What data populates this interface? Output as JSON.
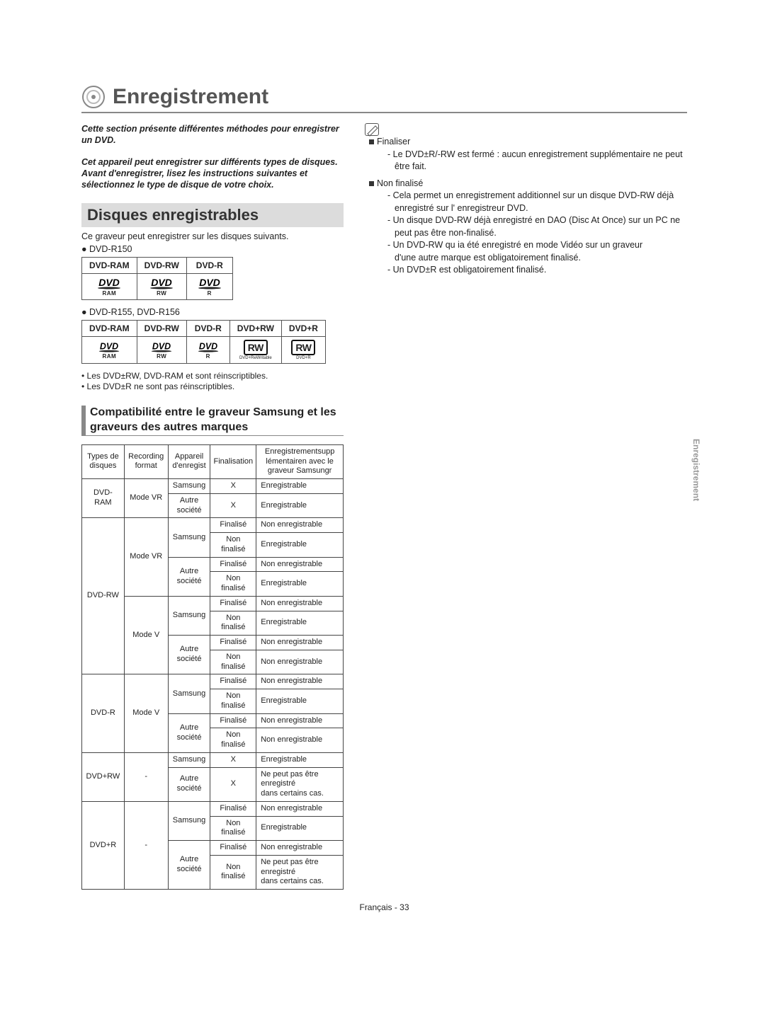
{
  "title": "Enregistrement",
  "side_tab": "Enregistrement",
  "intro": [
    "Cette section présente différentes méthodes pour enregistrer un DVD.",
    "Cet appareil peut enregistrer sur différents types de disques. Avant d'enregistrer, lisez les instructions suivantes et sélectionnez le type de disque de votre choix."
  ],
  "section1": {
    "heading": "Disques enregistrables",
    "desc": "Ce graveur peut enregistrer sur les disques suivants.",
    "model1": "DVD-R150",
    "model2": "DVD-R155, DVD-R156",
    "table1_headers": [
      "DVD-RAM",
      "DVD-RW",
      "DVD-R"
    ],
    "table1_sub": [
      "RAM",
      "RW",
      "R"
    ],
    "table2_headers": [
      "DVD-RAM",
      "DVD-RW",
      "DVD-R",
      "DVD+RW",
      "DVD+R"
    ],
    "table2_sub": [
      "RAM",
      "RW",
      "R",
      "DVD+ReWritable",
      "DVD+R"
    ],
    "rw_label": "RW",
    "notes": [
      "Les DVD±RW, DVD-RAM et sont réinscriptibles.",
      "Les DVD±R ne sont pas réinscriptibles."
    ]
  },
  "section2": {
    "heading": "Compatibilité entre le graveur Samsung et les graveurs des autres marques",
    "cols": [
      "Types de disques",
      "Recording format",
      "Appareil d'enregist",
      "Finalisation",
      "Enregistrementsupp lémentairen avec le graveur Samsungr"
    ],
    "rows": [
      [
        "DVD-RAM",
        "Mode VR",
        "Samsung",
        "X",
        "Enregistrable",
        {
          "r0": 2,
          "r1": 2
        }
      ],
      [
        "",
        "",
        "Autre société",
        "X",
        "Enregistrable",
        {}
      ],
      [
        "DVD-RW",
        "Mode VR",
        "Samsung",
        "Finalisé",
        "Non enregistrable",
        {
          "r0": 8,
          "r1": 4,
          "r2": 2
        }
      ],
      [
        "",
        "",
        "",
        "Non finalisé",
        "Enregistrable",
        {}
      ],
      [
        "",
        "",
        "Autre société",
        "Finalisé",
        "Non enregistrable",
        {
          "r2": 2
        }
      ],
      [
        "",
        "",
        "",
        "Non finalisé",
        "Enregistrable",
        {}
      ],
      [
        "",
        "Mode V",
        "Samsung",
        "Finalisé",
        "Non enregistrable",
        {
          "r1": 4,
          "r2": 2
        }
      ],
      [
        "",
        "",
        "",
        "Non finalisé",
        "Enregistrable",
        {}
      ],
      [
        "",
        "",
        "Autre société",
        "Finalisé",
        "Non enregistrable",
        {
          "r2": 2
        }
      ],
      [
        "",
        "",
        "",
        "Non finalisé",
        "Non enregistrable",
        {}
      ],
      [
        "DVD-R",
        "Mode V",
        "Samsung",
        "Finalisé",
        "Non enregistrable",
        {
          "r0": 4,
          "r1": 4,
          "r2": 2
        }
      ],
      [
        "",
        "",
        "",
        "Non finalisé",
        "Enregistrable",
        {}
      ],
      [
        "",
        "",
        "Autre société",
        "Finalisé",
        "Non enregistrable",
        {
          "r2": 2
        }
      ],
      [
        "",
        "",
        "",
        "Non finalisé",
        "Non enregistrable",
        {}
      ],
      [
        "DVD+RW",
        "-",
        "Samsung",
        "X",
        "Enregistrable",
        {
          "r0": 2,
          "r1": 2
        }
      ],
      [
        "",
        "",
        "Autre société",
        "X",
        "Ne peut pas être enregistré\ndans certains cas.",
        {}
      ],
      [
        "DVD+R",
        "-",
        "Samsung",
        "Finalisé",
        "Non enregistrable",
        {
          "r0": 4,
          "r1": 4,
          "r2": 2
        }
      ],
      [
        "",
        "",
        "",
        "Non finalisé",
        "Enregistrable",
        {}
      ],
      [
        "",
        "",
        "Autre société",
        "Finalisé",
        "Non enregistrable",
        {
          "r2": 2
        }
      ],
      [
        "",
        "",
        "",
        "Non finalisé",
        "Ne peut pas être enregistré\ndans certains cas.",
        {}
      ]
    ]
  },
  "right_notes": {
    "finaliser_label": "Finaliser",
    "finaliser_items": [
      "Le DVD±R/-RW est fermé : aucun enregistrement supplémentaire ne peut être fait."
    ],
    "nonfinalise_label": "Non finalisé",
    "nonfinalise_items": [
      "Cela permet un enregistrement additionnel sur un disque DVD-RW déjà enregistré sur l' enregistreur DVD.",
      "Un disque DVD-RW déjà enregistré en DAO (Disc At Once) sur un PC ne peut pas être non-finalisé.",
      "Un DVD-RW qu ia été enregistré en mode Vidéo sur un graveur\nd'une autre marque est obligatoirement finalisé.",
      "Un DVD±R est obligatoirement finalisé."
    ]
  },
  "footer": "Français - 33"
}
